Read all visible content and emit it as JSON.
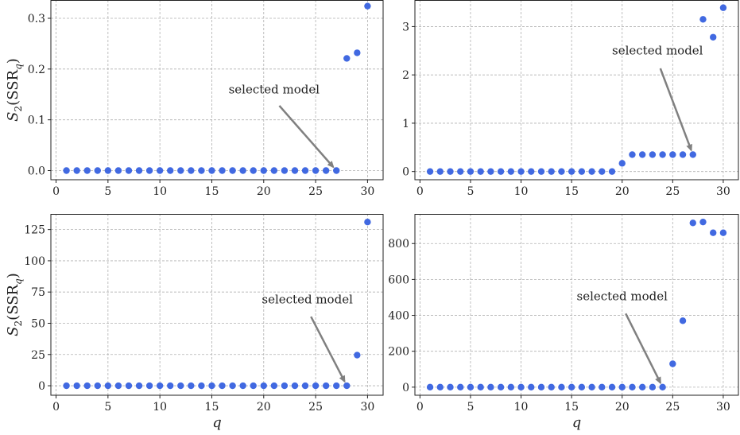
{
  "chart_data": [
    {
      "type": "scatter",
      "xlim": [
        -0.5,
        31.5
      ],
      "ylim": [
        -0.018,
        0.336
      ],
      "xticks": [
        0,
        5,
        10,
        15,
        20,
        25,
        30
      ],
      "yticks": [
        0.0,
        0.1,
        0.2,
        0.3
      ],
      "ytick_labels": [
        "0.0",
        "0.1",
        "0.2",
        "0.3"
      ],
      "ylabel": "S2(SSRq)",
      "xlabel": "",
      "grid": true,
      "color": "#4169e1",
      "x": [
        1,
        2,
        3,
        4,
        5,
        6,
        7,
        8,
        9,
        10,
        11,
        12,
        13,
        14,
        15,
        16,
        17,
        18,
        19,
        20,
        21,
        22,
        23,
        24,
        25,
        26,
        27,
        28,
        29,
        30
      ],
      "y": [
        0,
        0,
        0,
        0,
        0,
        0,
        0,
        0,
        0,
        0,
        0,
        0,
        0,
        0,
        0,
        0,
        0,
        0,
        0,
        0,
        0,
        0,
        0,
        0,
        0,
        0,
        0,
        0.221,
        0.232,
        0.324
      ],
      "annotation": {
        "text": "selected model",
        "text_at": [
          21,
          0.152
        ],
        "arrow_to": [
          27,
          0
        ]
      }
    },
    {
      "type": "scatter",
      "xlim": [
        -0.5,
        31.5
      ],
      "ylim": [
        -0.17,
        3.55
      ],
      "xticks": [
        0,
        5,
        10,
        15,
        20,
        25,
        30
      ],
      "yticks": [
        0,
        1,
        2,
        3
      ],
      "ytick_labels": [
        "0",
        "1",
        "2",
        "3"
      ],
      "ylabel": "",
      "xlabel": "",
      "grid": true,
      "color": "#4169e1",
      "x": [
        1,
        2,
        3,
        4,
        5,
        6,
        7,
        8,
        9,
        10,
        11,
        12,
        13,
        14,
        15,
        16,
        17,
        18,
        19,
        20,
        21,
        22,
        23,
        24,
        25,
        26,
        27,
        28,
        29,
        30
      ],
      "y": [
        0,
        0,
        0,
        0,
        0,
        0,
        0,
        0,
        0,
        0,
        0,
        0,
        0,
        0,
        0,
        0,
        0,
        0,
        0,
        0.17,
        0.35,
        0.35,
        0.35,
        0.35,
        0.35,
        0.35,
        0.35,
        3.15,
        2.78,
        3.39
      ],
      "annotation": {
        "text": "selected model",
        "text_at": [
          23.5,
          2.42
        ],
        "arrow_to": [
          27,
          0.35
        ]
      }
    },
    {
      "type": "scatter",
      "xlim": [
        -0.5,
        31.5
      ],
      "ylim": [
        -7.6,
        137.5
      ],
      "xticks": [
        0,
        5,
        10,
        15,
        20,
        25,
        30
      ],
      "yticks": [
        0,
        25,
        50,
        75,
        100,
        125
      ],
      "ytick_labels": [
        "0",
        "25",
        "50",
        "75",
        "100",
        "125"
      ],
      "ylabel": "S2(SSRq)",
      "xlabel": "q",
      "grid": true,
      "color": "#4169e1",
      "x": [
        1,
        2,
        3,
        4,
        5,
        6,
        7,
        8,
        9,
        10,
        11,
        12,
        13,
        14,
        15,
        16,
        17,
        18,
        19,
        20,
        21,
        22,
        23,
        24,
        25,
        26,
        27,
        28,
        29,
        30
      ],
      "y": [
        0,
        0,
        0,
        0,
        0,
        0,
        0,
        0,
        0,
        0,
        0,
        0,
        0,
        0,
        0,
        0,
        0,
        0,
        0,
        0,
        0,
        0,
        0,
        0,
        0,
        0,
        0,
        0,
        24.5,
        131
      ],
      "annotation": {
        "text": "selected model",
        "text_at": [
          24.2,
          66
        ],
        "arrow_to": [
          28,
          0
        ]
      }
    },
    {
      "type": "scatter",
      "xlim": [
        -0.5,
        31.5
      ],
      "ylim": [
        -45,
        965
      ],
      "xticks": [
        0,
        5,
        10,
        15,
        20,
        25,
        30
      ],
      "yticks": [
        0,
        200,
        400,
        600,
        800
      ],
      "ytick_labels": [
        "0",
        "200",
        "400",
        "600",
        "800"
      ],
      "ylabel": "",
      "xlabel": "q",
      "grid": true,
      "color": "#4169e1",
      "x": [
        1,
        2,
        3,
        4,
        5,
        6,
        7,
        8,
        9,
        10,
        11,
        12,
        13,
        14,
        15,
        16,
        17,
        18,
        19,
        20,
        21,
        22,
        23,
        24,
        25,
        26,
        27,
        28,
        29,
        30
      ],
      "y": [
        0,
        0,
        0,
        0,
        0,
        0,
        0,
        0,
        0,
        0,
        0,
        0,
        0,
        0,
        0,
        0,
        0,
        0,
        0,
        0,
        0,
        0,
        0,
        0,
        130,
        370,
        915,
        920,
        860,
        860
      ],
      "annotation": {
        "text": "selected model",
        "text_at": [
          20,
          485
        ],
        "arrow_to": [
          24,
          0
        ]
      }
    }
  ]
}
